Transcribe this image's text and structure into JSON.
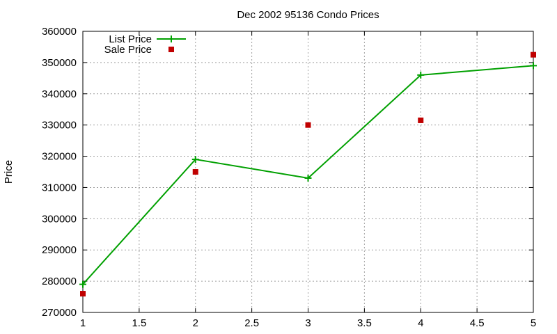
{
  "chart_data": {
    "type": "line",
    "title": "Dec 2002 95136 Condo Prices",
    "xlabel": "",
    "ylabel": "Price",
    "xlim": [
      1,
      5
    ],
    "ylim": [
      270000,
      360000
    ],
    "x_ticks": [
      "1",
      "1.5",
      "2",
      "2.5",
      "3",
      "3.5",
      "4",
      "4.5",
      "5"
    ],
    "y_ticks": [
      "270000",
      "280000",
      "290000",
      "300000",
      "310000",
      "320000",
      "330000",
      "340000",
      "350000",
      "360000"
    ],
    "grid": true,
    "legend_position": "top-left",
    "series": [
      {
        "name": "List Price",
        "style": "line-with-plus-markers",
        "color": "#00a000",
        "x": [
          1,
          2,
          3,
          4,
          5
        ],
        "y": [
          279000,
          319000,
          313000,
          346000,
          349000
        ]
      },
      {
        "name": "Sale Price",
        "style": "square-points",
        "color": "#c00000",
        "x": [
          1,
          2,
          3,
          4,
          5
        ],
        "y": [
          276000,
          315000,
          330000,
          331500,
          352500
        ]
      }
    ]
  }
}
